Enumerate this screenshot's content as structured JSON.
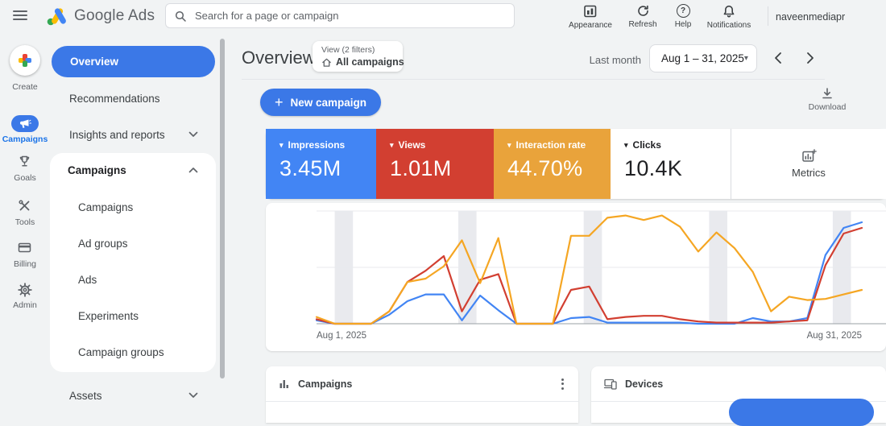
{
  "topbar": {
    "product_name": "Google Ads",
    "search_placeholder": "Search for a page or campaign",
    "actions": [
      {
        "label": "Appearance"
      },
      {
        "label": "Refresh"
      },
      {
        "label": "Help"
      },
      {
        "label": "Notifications"
      }
    ],
    "account_name": "naveenmediapr"
  },
  "left_rail": {
    "items": [
      {
        "label": "Create"
      },
      {
        "label": "Campaigns",
        "active": true
      },
      {
        "label": "Goals"
      },
      {
        "label": "Tools"
      },
      {
        "label": "Billing"
      },
      {
        "label": "Admin"
      }
    ]
  },
  "subnav": {
    "overview": "Overview",
    "recommendations": "Recommendations",
    "insights": "Insights and reports",
    "campaigns_section": {
      "label": "Campaigns",
      "items": [
        "Campaigns",
        "Ad groups",
        "Ads",
        "Experiments",
        "Campaign groups"
      ]
    },
    "assets": "Assets"
  },
  "page_header": {
    "title": "Overview",
    "view_label": "View (2 filters)",
    "view_value": "All campaigns",
    "range_preset": "Last month",
    "date_range": "Aug 1 – 31, 2025"
  },
  "toolbar": {
    "new_campaign_label": "New campaign",
    "download_label": "Download"
  },
  "scorecards": [
    {
      "label": "Impressions",
      "value": "3.45M",
      "bg": "#4285f4",
      "fg": "#ffffff"
    },
    {
      "label": "Views",
      "value": "1.01M",
      "bg": "#d23f31",
      "fg": "#ffffff"
    },
    {
      "label": "Interaction rate",
      "value": "44.70%",
      "bg": "#e9a33b",
      "fg": "#ffffff"
    },
    {
      "label": "Clicks",
      "value": "10.4K",
      "bg": "#ffffff",
      "fg": "#202124"
    }
  ],
  "metrics_panel": {
    "label": "Metrics"
  },
  "widgets": [
    {
      "title": "Campaigns"
    },
    {
      "title": "Devices"
    }
  ],
  "chart_data": {
    "type": "line",
    "title": "",
    "x_start_label": "Aug 1, 2025",
    "x_end_label": "Aug 31, 2025",
    "num_points": 31,
    "ylim": [
      0,
      100
    ],
    "y_axis_labels_visible": false,
    "values_unit": "percent of plot height (no y-axis tick labels shown in chart)",
    "series": [
      {
        "name": "Impressions",
        "color": "#4285f4",
        "values": [
          3,
          0,
          0,
          0,
          8,
          20,
          26,
          26,
          3,
          25,
          12,
          0,
          0,
          0,
          5,
          6,
          1,
          1,
          1,
          1,
          1,
          0,
          0,
          0,
          5,
          2,
          2,
          5,
          61,
          85,
          90
        ]
      },
      {
        "name": "Views",
        "color": "#d23f31",
        "values": [
          4,
          0,
          0,
          0,
          11,
          37,
          47,
          60,
          11,
          39,
          44,
          0,
          0,
          0,
          30,
          33,
          4,
          6,
          7,
          7,
          4,
          2,
          1,
          1,
          1,
          1,
          2,
          3,
          52,
          80,
          85
        ]
      },
      {
        "name": "Interaction rate",
        "color": "#f5a623",
        "values": [
          6,
          0,
          0,
          0,
          11,
          37,
          40,
          51,
          74,
          36,
          76,
          0,
          0,
          0,
          78,
          78,
          94,
          96,
          92,
          96,
          86,
          64,
          81,
          67,
          46,
          11,
          24,
          21,
          22,
          26,
          30
        ]
      }
    ],
    "shaded_band_day_ranges": [
      [
        2.0,
        3.0
      ],
      [
        8.8,
        9.8
      ],
      [
        15.7,
        16.7
      ],
      [
        22.6,
        23.6
      ],
      [
        29.4,
        30.4
      ]
    ],
    "gridlines": {
      "horizontal": 3,
      "vertical": 0
    }
  }
}
